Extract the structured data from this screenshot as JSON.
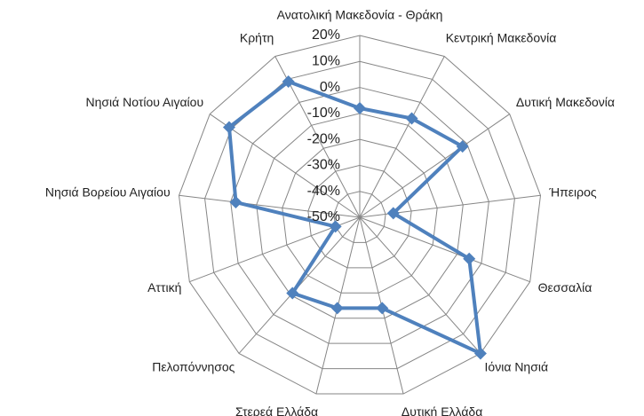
{
  "chart_data": {
    "type": "radar",
    "categories": [
      "Ανατολική Μακεδονία - Θράκη",
      "Κεντρική Μακεδονία",
      "Δυτική Μακεδονία",
      "Ήπειρος",
      "Θεσσαλία",
      "Ιόνια Νησιά",
      "Δυτική Ελλάδα",
      "Στερεά Ελλάδα",
      "Πελοπόννησος",
      "Αττική",
      "Νησιά Βορείου Αιγαίου",
      "Νησιά Νοτίου Αιγαίου",
      "Κρήτη"
    ],
    "series": [
      {
        "color": "#4f81bd",
        "values": [
          -8,
          -7,
          -2,
          -37,
          -5,
          20,
          -14,
          -14,
          -11,
          -40,
          -2,
          11,
          9
        ]
      }
    ],
    "ylim": [
      -50,
      20
    ],
    "yticks": [
      {
        "value": 20,
        "label": "20%"
      },
      {
        "value": 10,
        "label": "10%"
      },
      {
        "value": 0,
        "label": "0%"
      },
      {
        "value": -10,
        "label": "-10%"
      },
      {
        "value": -20,
        "label": "-20%"
      },
      {
        "value": -30,
        "label": "-30%"
      },
      {
        "value": -40,
        "label": "-40%"
      },
      {
        "value": -50,
        "label": "-50%"
      }
    ],
    "grid": true
  }
}
